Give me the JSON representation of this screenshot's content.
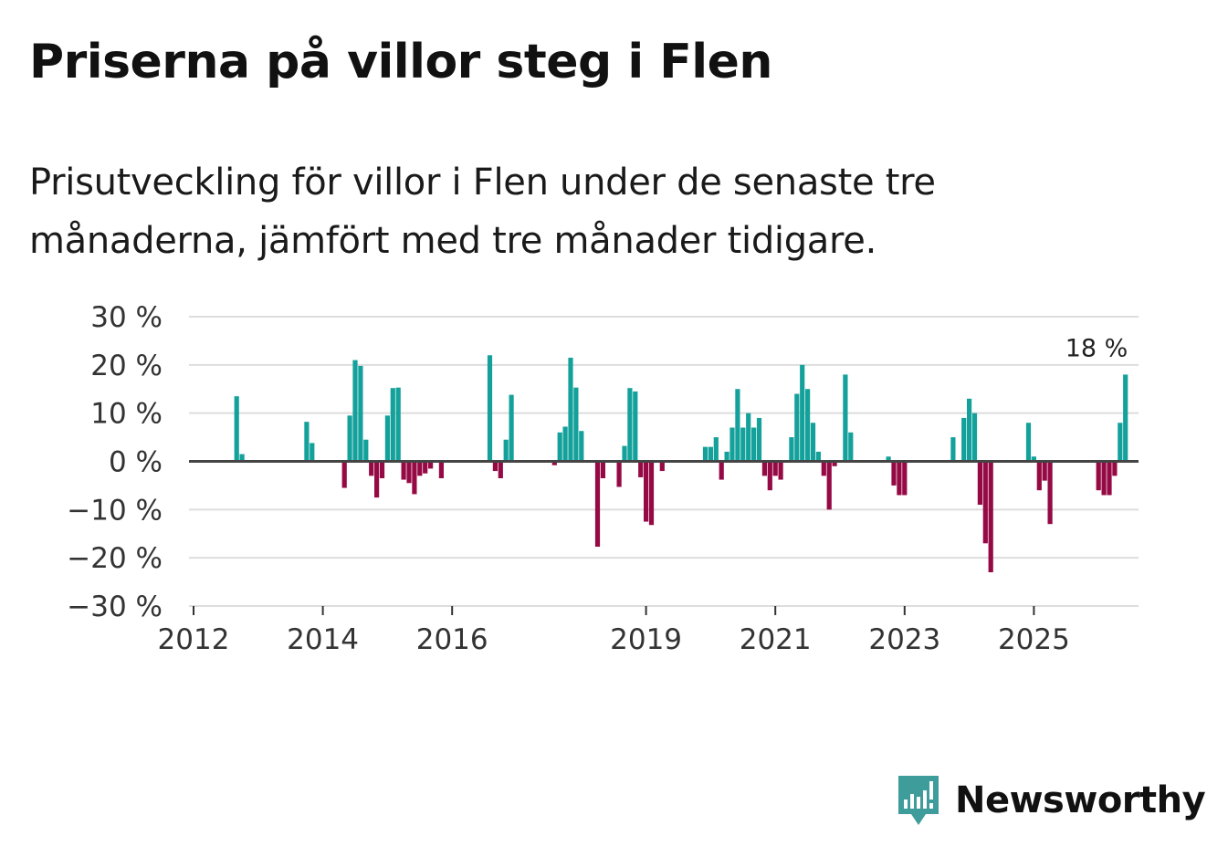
{
  "header": {
    "title": "Priserna på villor steg i Flen",
    "subtitle": "Prisutveckling för villor i Flen under de senaste tre månaderna, jämfört med tre månader tidigare."
  },
  "brand": {
    "name": "Newsworthy",
    "color": "#3e9c9a"
  },
  "colors": {
    "positive": "#14a19b",
    "negative": "#950a45",
    "zero_line": "#444444",
    "grid": "#dddddd"
  },
  "chart_data": {
    "type": "bar",
    "title": "Priserna på villor steg i Flen",
    "x_unit": "month",
    "x_start": "2012-01",
    "ylim": [
      -30,
      30
    ],
    "y_ticks": [
      30,
      20,
      10,
      0,
      -10,
      -20,
      -30
    ],
    "y_tick_labels": [
      "30 %",
      "20 %",
      "10 %",
      "0 %",
      "−10 %",
      "−20 %",
      "−30 %"
    ],
    "x_ticks": [
      2012,
      2014,
      2016,
      2019,
      2021,
      2023,
      2025
    ],
    "x_tick_labels": [
      "2012",
      "2014",
      "2016",
      "2019",
      "2021",
      "2023",
      "2025"
    ],
    "grid": true,
    "annotation": {
      "label": "18 %",
      "month_index": 167,
      "value": 18
    },
    "values": [
      0,
      0,
      0,
      0,
      0,
      0,
      0,
      0,
      13.5,
      1.5,
      0,
      0,
      0,
      0,
      0,
      0,
      0,
      0,
      0,
      0,
      0,
      8.2,
      3.8,
      0,
      0,
      0,
      0,
      0,
      -5.5,
      9.5,
      21,
      19.8,
      4.5,
      -3,
      -7.5,
      -3.5,
      9.5,
      15.2,
      15.3,
      -3.8,
      -4.5,
      -6.8,
      -3,
      -2.5,
      -1.5,
      0,
      -3.5,
      0,
      0,
      0,
      0,
      0,
      0,
      0,
      0,
      22,
      -2,
      -3.5,
      4.5,
      13.8,
      0,
      0,
      0,
      0,
      0,
      0,
      0,
      -0.8,
      6,
      7.2,
      21.5,
      15.3,
      6.3,
      0,
      0,
      -17.7,
      -3.5,
      0,
      0,
      -5.3,
      3.2,
      15.2,
      14.5,
      -3.3,
      -12.5,
      -13.2,
      0,
      -2,
      0,
      0,
      0,
      0,
      0,
      0,
      0,
      3,
      3,
      5,
      -3.8,
      2,
      7,
      15,
      7,
      10,
      7,
      9,
      -3,
      -6,
      -3,
      -3.8,
      0,
      5,
      14,
      20,
      15,
      8,
      2,
      -3,
      -10,
      -1,
      0,
      18,
      6,
      0,
      0,
      0,
      0,
      0,
      0,
      1,
      -5,
      -7,
      -7,
      0,
      0,
      0,
      0,
      0,
      0,
      0,
      0,
      5,
      0,
      9,
      13,
      10,
      -9,
      -17,
      -23,
      0,
      0,
      0,
      0,
      0,
      0,
      8,
      1,
      -6,
      -4,
      -13,
      0,
      0,
      0,
      0,
      0,
      0,
      0,
      0,
      -6,
      -7,
      -7,
      -3,
      8,
      18
    ]
  }
}
